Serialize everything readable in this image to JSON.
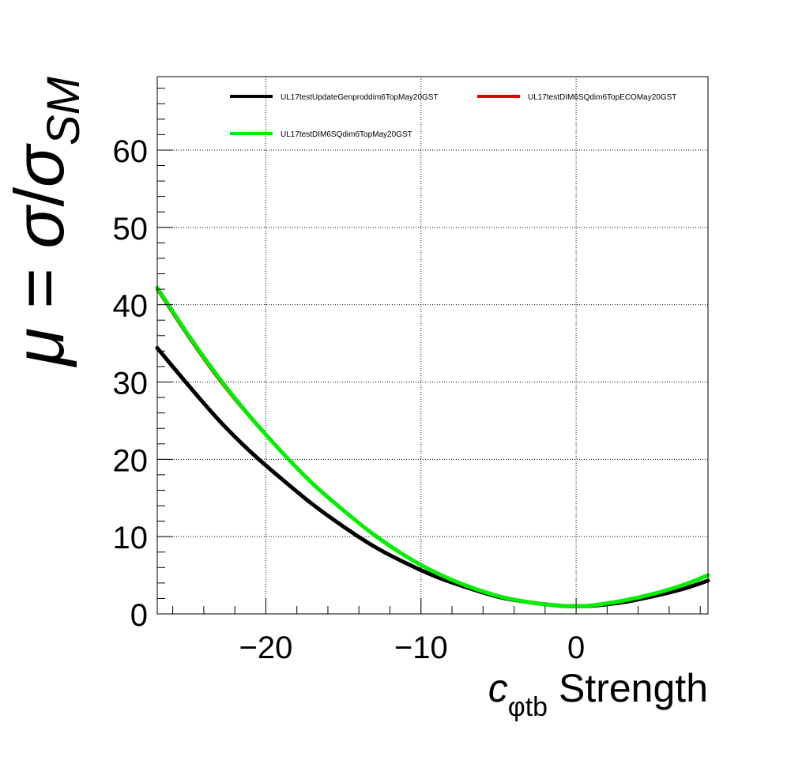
{
  "chart_data": {
    "type": "line",
    "title": "",
    "xlabel": {
      "symbol": "c",
      "subscript": "φtb",
      "suffix": " Strength"
    },
    "ylabel": {
      "mu": "μ",
      "equals": " = ",
      "sigma": "σ",
      "slash": "/",
      "sigma_sm": "σ",
      "subscript": "SM"
    },
    "xlim": [
      -27,
      8.5
    ],
    "ylim": [
      0,
      69.5
    ],
    "x_ticks": [
      -20,
      -10,
      0
    ],
    "x_tick_labels": [
      "−20",
      "−10",
      "0"
    ],
    "y_ticks": [
      0,
      10,
      20,
      30,
      40,
      50,
      60
    ],
    "y_tick_labels": [
      "0",
      "10",
      "20",
      "30",
      "40",
      "50",
      "60"
    ],
    "grid": true,
    "legend_position": "top",
    "x": [
      -27,
      -25,
      -23,
      -21,
      -19,
      -17,
      -15,
      -13,
      -11,
      -9,
      -7,
      -5,
      -3,
      -1,
      0,
      1,
      3,
      5,
      7,
      8.5
    ],
    "series": [
      {
        "name": "UL17testUpdateGenproddim6TopMay20GST",
        "color": "#000000",
        "values": [
          34.4,
          29.6,
          25.0,
          21.0,
          17.5,
          14.2,
          11.3,
          8.7,
          6.6,
          4.8,
          3.4,
          2.2,
          1.5,
          1.05,
          1.0,
          1.05,
          1.5,
          2.3,
          3.3,
          4.3
        ]
      },
      {
        "name": "UL17testDIM6SQdim6TopECOMay20GST",
        "color": "#e00000",
        "values": [
          42.0,
          35.9,
          30.3,
          25.4,
          21.0,
          16.9,
          13.4,
          10.2,
          7.5,
          5.3,
          3.6,
          2.3,
          1.5,
          1.05,
          1.0,
          1.1,
          1.7,
          2.6,
          3.8,
          5.0
        ]
      },
      {
        "name": "UL17testDIM6SQdim6TopMay20GST",
        "color": "#00ee00",
        "values": [
          42.2,
          36.1,
          30.5,
          25.5,
          21.0,
          16.9,
          13.4,
          10.2,
          7.5,
          5.3,
          3.6,
          2.3,
          1.5,
          1.05,
          1.0,
          1.1,
          1.7,
          2.6,
          3.8,
          5.0
        ]
      }
    ]
  }
}
